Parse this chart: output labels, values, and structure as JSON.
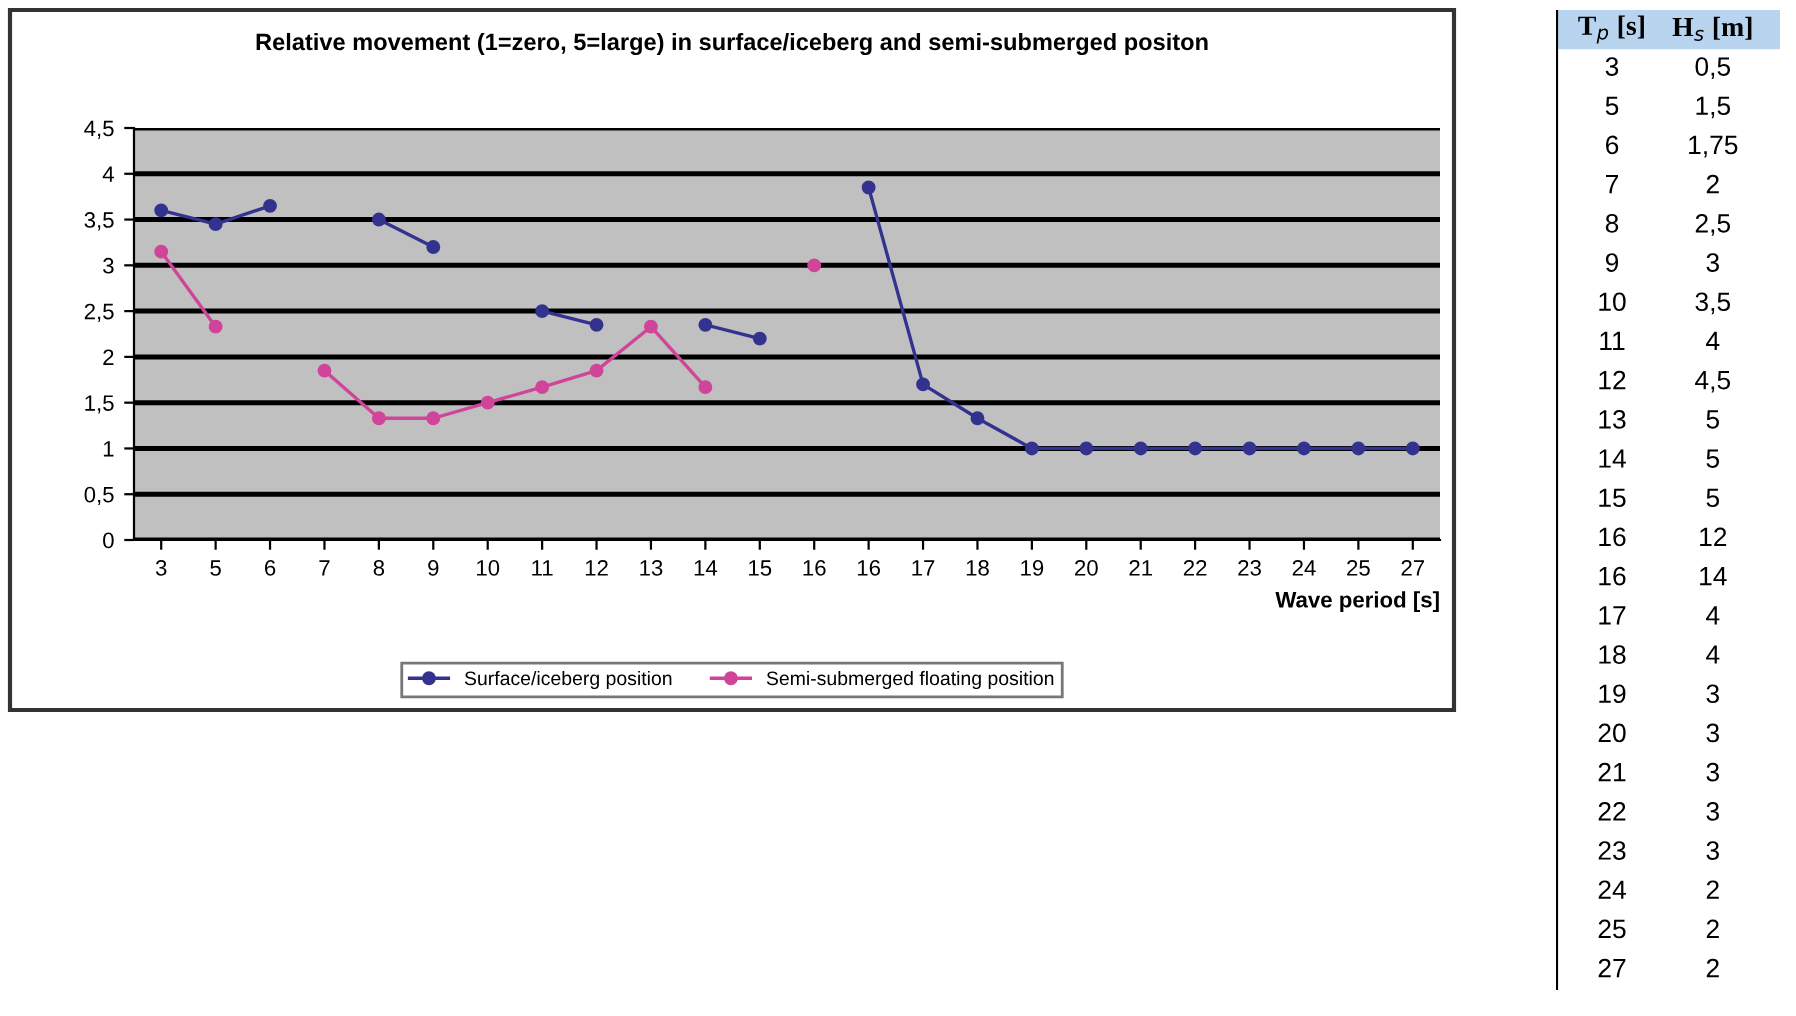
{
  "chart_data": [
    {
      "type": "line",
      "title": "Relative movement (1=zero, 5=large) in surface/iceberg and semi-submerged positon",
      "xlabel": "Wave period [s]",
      "categories": [
        "3",
        "5",
        "6",
        "7",
        "8",
        "9",
        "10",
        "11",
        "12",
        "13",
        "14",
        "15",
        "16",
        "16",
        "17",
        "18",
        "19",
        "20",
        "21",
        "22",
        "23",
        "24",
        "25",
        "27"
      ],
      "series": [
        {
          "name": "Surface/iceberg position",
          "color": "#33338f",
          "values": [
            3.6,
            3.45,
            3.65,
            null,
            3.5,
            3.2,
            null,
            2.5,
            2.35,
            null,
            2.35,
            2.2,
            null,
            3.85,
            1.7,
            1.33,
            1,
            1,
            1,
            1,
            1,
            1,
            1,
            1
          ]
        },
        {
          "name": "Semi-submerged floating position",
          "color": "#d0449a",
          "values": [
            3.15,
            2.33,
            null,
            1.85,
            1.33,
            1.33,
            1.5,
            1.67,
            1.85,
            2.33,
            1.67,
            null,
            3.0,
            null,
            null,
            null,
            null,
            null,
            null,
            null,
            null,
            null,
            null,
            null
          ]
        }
      ],
      "ylim": [
        0,
        4.5
      ],
      "yticks": [
        0,
        {
          "value": 0.5,
          "label": "0,5"
        },
        1,
        {
          "value": 1.5,
          "label": "1,5"
        },
        2,
        {
          "value": 2.5,
          "label": "2,5"
        },
        3,
        {
          "value": 3.5,
          "label": "3,5"
        },
        4,
        {
          "value": 4.5,
          "label": "4,5"
        }
      ],
      "grid": "y",
      "legend": "bottom",
      "marker": "circle",
      "line_style": "solid"
    },
    {
      "type": "other",
      "xlabel": "T$_{p}$ [s]",
      "ylabel": "H$_{s}$ [m]",
      "categories": [
        "3",
        "5",
        "6",
        "7",
        "8",
        "9",
        "10",
        "11",
        "12",
        "13",
        "14",
        "15",
        "16",
        "16",
        "17",
        "18",
        "19",
        "20",
        "21",
        "22",
        "23",
        "24",
        "25",
        "27"
      ],
      "annotations": [
        "0,5",
        "1,5",
        "1,75",
        "2",
        "2,5",
        "3",
        "3,5",
        "4",
        "4,5",
        "5",
        "5",
        "5",
        "12",
        "14",
        "4",
        "4",
        "3",
        "3",
        "3",
        "3",
        "3",
        "2",
        "2",
        "2"
      ]
    }
  ]
}
